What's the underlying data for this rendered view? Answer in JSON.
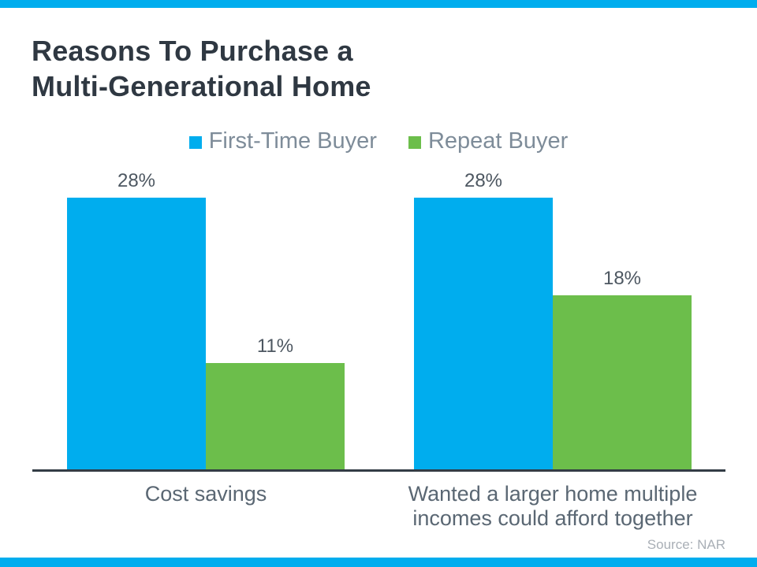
{
  "page": {
    "accent_color": "#00ADEE",
    "title_line1": "Reasons To Purchase a",
    "title_line2": "Multi-Generational Home",
    "source": "Source: NAR"
  },
  "chart_data": {
    "type": "bar",
    "title": "Reasons To Purchase a Multi-Generational Home",
    "categories": [
      "Cost savings",
      "Wanted a larger home multiple incomes could afford together"
    ],
    "series": [
      {
        "name": "First-Time Buyer",
        "color": "#00ADEE",
        "values": [
          28,
          28
        ]
      },
      {
        "name": "Repeat Buyer",
        "color": "#6CBE4B",
        "values": [
          11,
          18
        ]
      }
    ],
    "value_suffix": "%",
    "ylim": [
      0,
      30
    ],
    "legend_position": "top",
    "grid": false,
    "axis_line_color": "#333C45",
    "source": "Source: NAR"
  }
}
